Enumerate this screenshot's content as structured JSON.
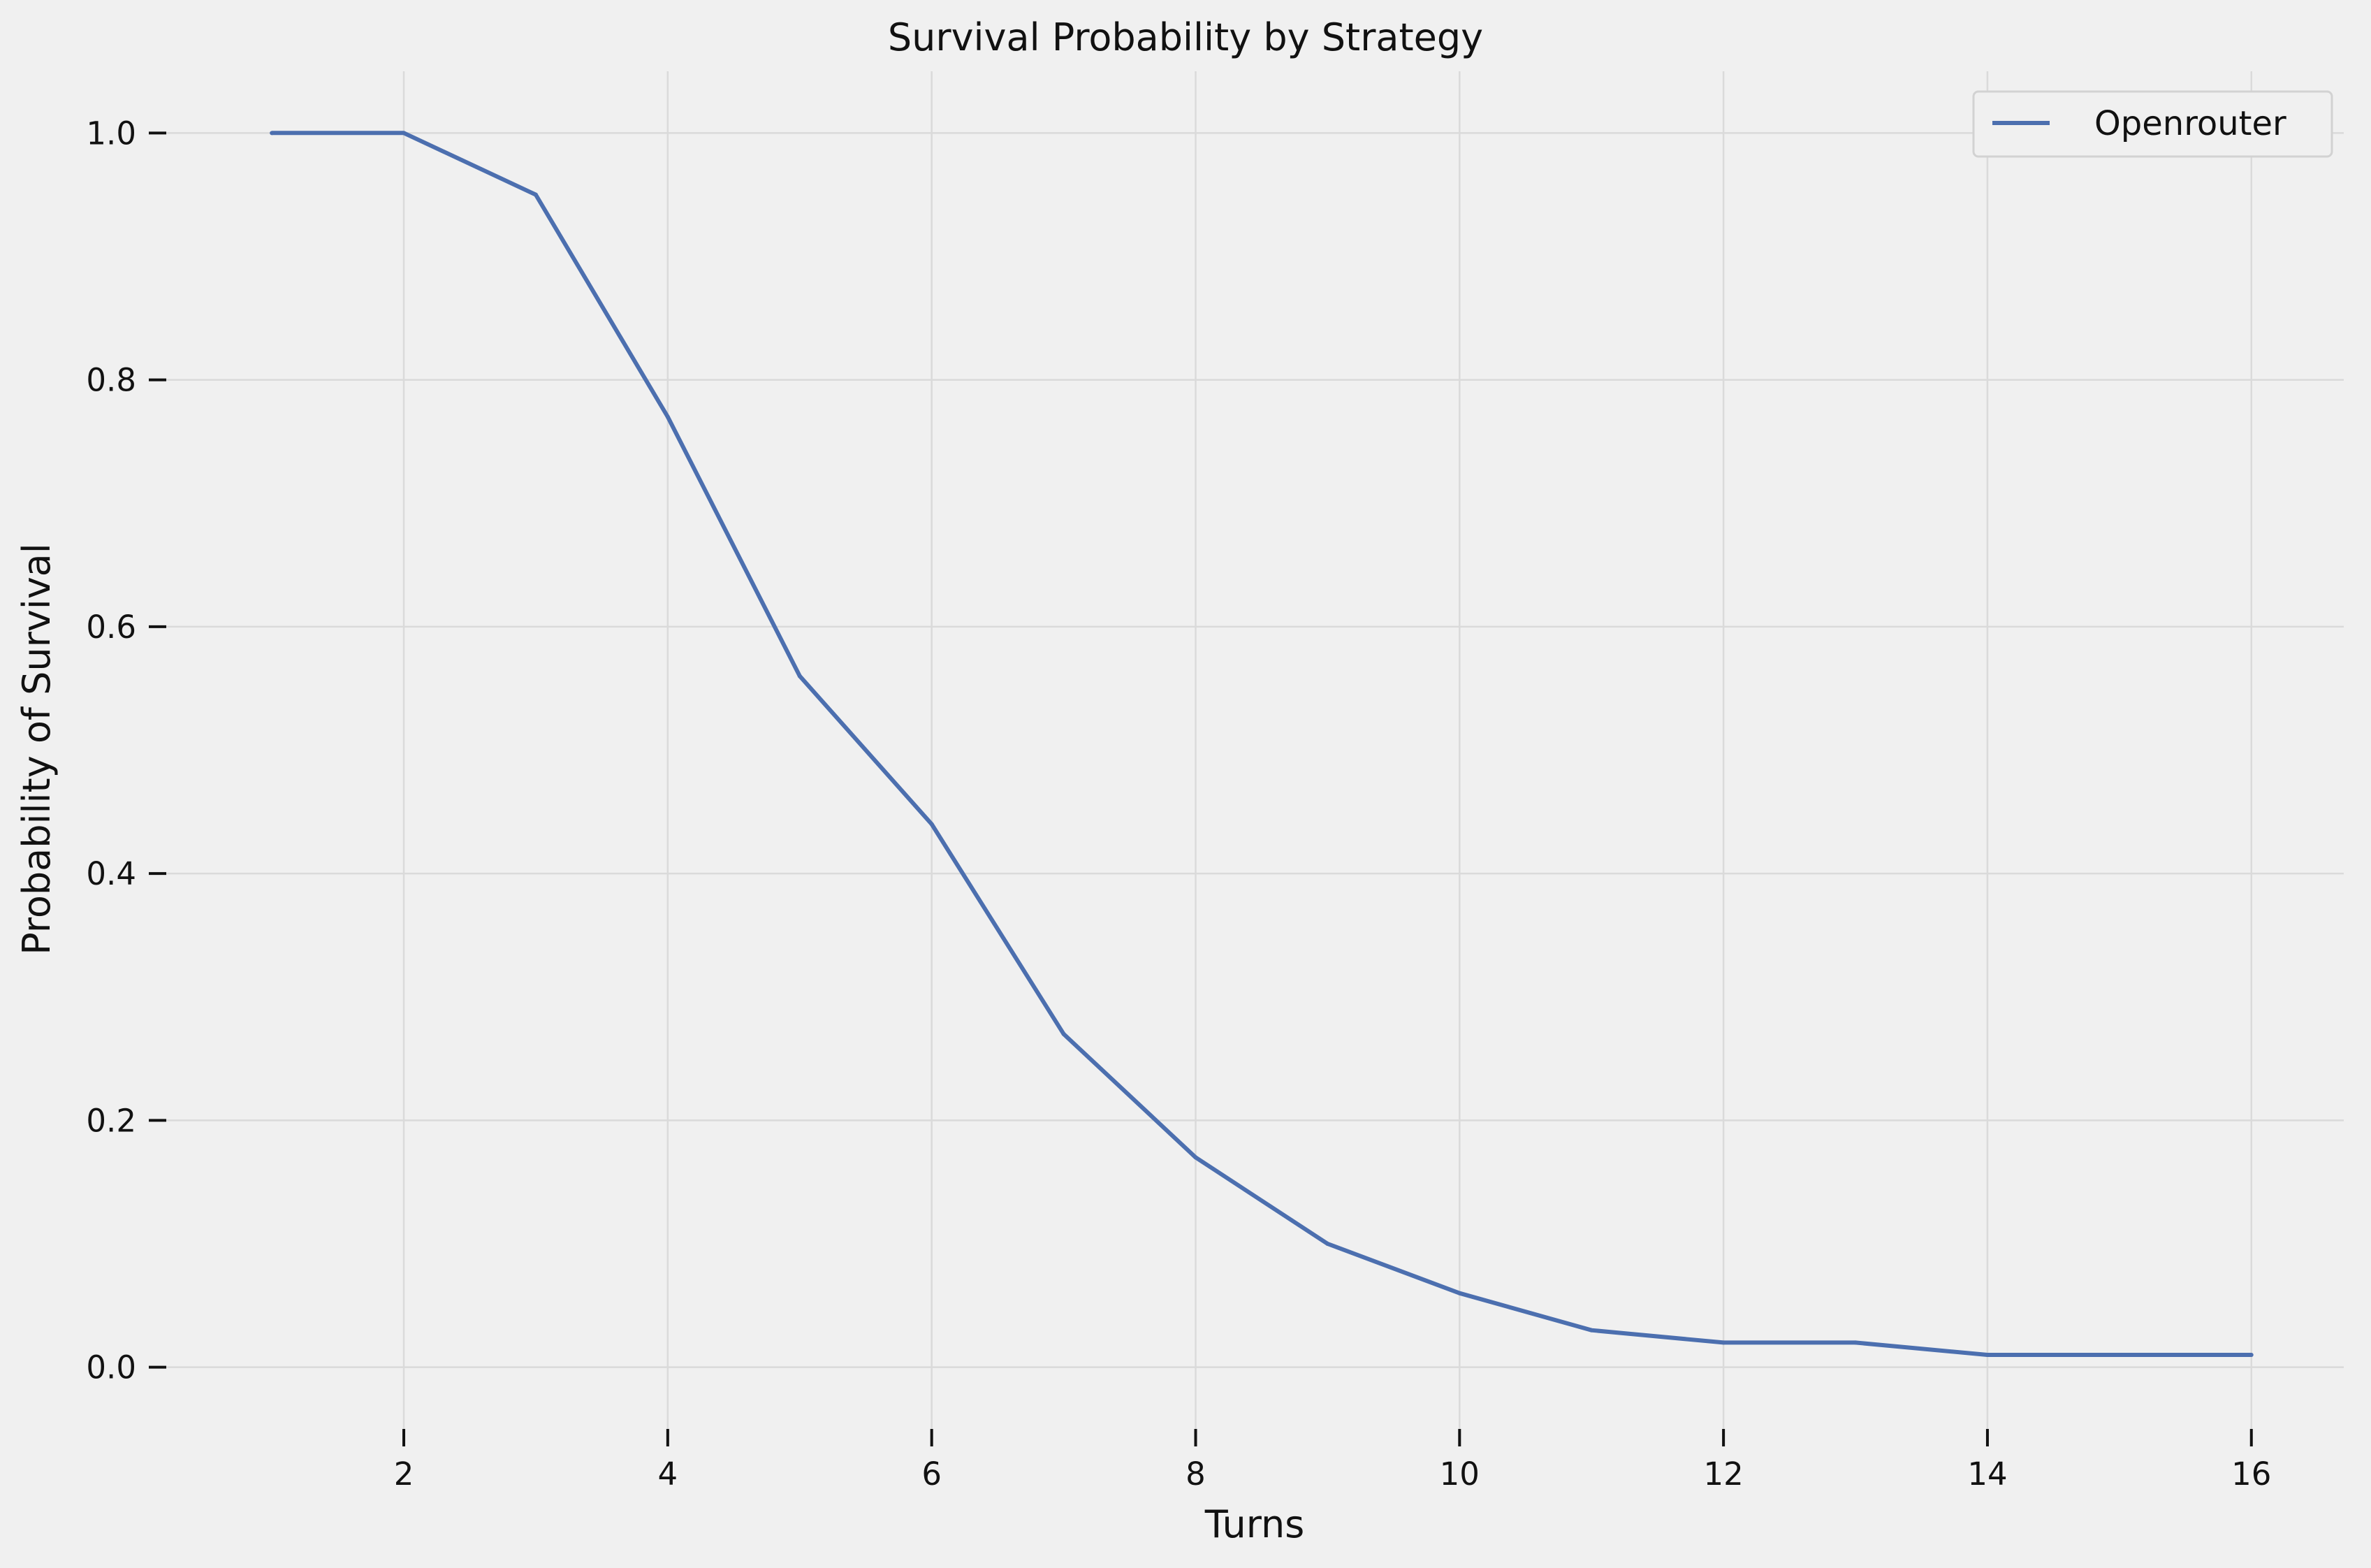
{
  "chart_data": {
    "type": "line",
    "title": "Survival Probability by Strategy",
    "xlabel": "Turns",
    "ylabel": "Probability of Survival",
    "xlim": [
      0.2,
      16.7
    ],
    "ylim": [
      -0.05,
      1.05
    ],
    "x_ticks": [
      2,
      4,
      6,
      8,
      10,
      12,
      14,
      16
    ],
    "y_ticks": [
      0.0,
      0.2,
      0.4,
      0.6,
      0.8,
      1.0
    ],
    "x_tick_labels": [
      "2",
      "4",
      "6",
      "8",
      "10",
      "12",
      "14",
      "16"
    ],
    "y_tick_labels": [
      "0.0",
      "0.2",
      "0.4",
      "0.6",
      "0.8",
      "1.0"
    ],
    "grid": true,
    "legend_position": "top-right",
    "series": [
      {
        "name": "Openrouter",
        "color": "#4c6faf",
        "x": [
          1,
          2,
          3,
          4,
          5,
          6,
          7,
          8,
          9,
          10,
          11,
          12,
          13,
          14,
          15,
          16
        ],
        "y": [
          1.0,
          1.0,
          0.95,
          0.77,
          0.56,
          0.44,
          0.27,
          0.17,
          0.1,
          0.06,
          0.03,
          0.02,
          0.02,
          0.01,
          0.01,
          0.01
        ]
      }
    ]
  }
}
